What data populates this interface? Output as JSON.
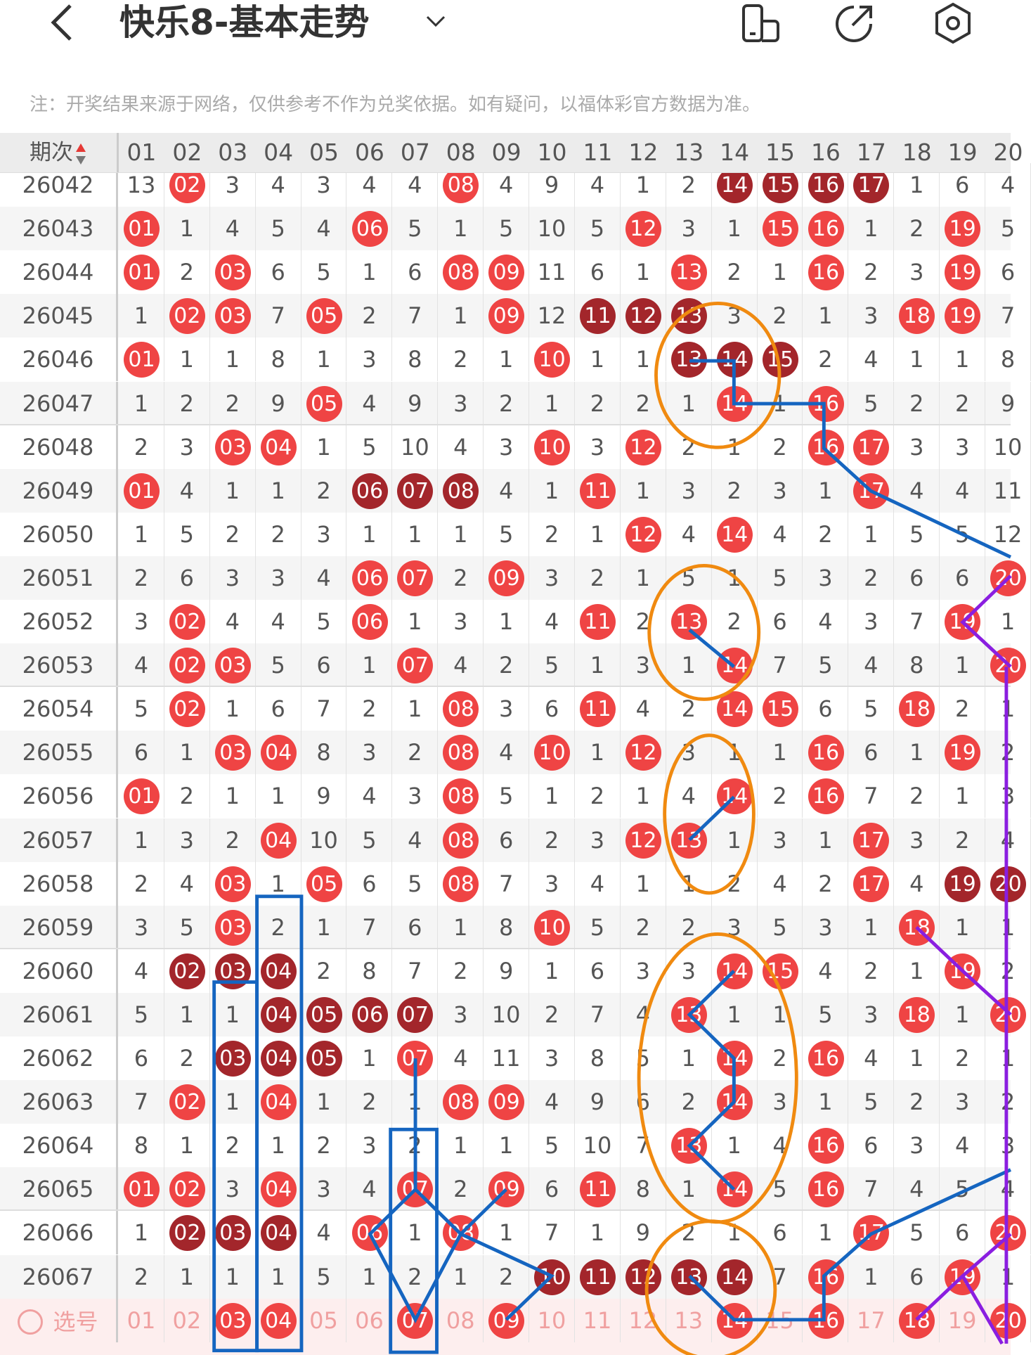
{
  "header": {
    "title": "快乐8-基本走势",
    "back_icon": "chevron-left-icon",
    "dropdown_icon": "chevron-down-icon",
    "actions": [
      {
        "icon": "phone-rotate-icon"
      },
      {
        "icon": "share-icon"
      },
      {
        "icon": "settings-icon"
      }
    ]
  },
  "notice": "注：开奖结果来源于网络，仅供参考不作为兑奖依据。如有疑问，以福体彩官方数据为准。",
  "table": {
    "period_header": "期次",
    "columns": [
      "01",
      "02",
      "03",
      "04",
      "05",
      "06",
      "07",
      "08",
      "09",
      "10",
      "11",
      "12",
      "13",
      "14",
      "15",
      "16",
      "17",
      "18",
      "19",
      "20"
    ],
    "colors": {
      "hit": "#ef4444",
      "consecutive": "#a3262b",
      "overlay_orange": "#f08a10",
      "overlay_blue": "#1565c0",
      "overlay_purple": "#8a1ee0"
    },
    "rows": [
      {
        "period": "26042",
        "values": [
          "13",
          "02",
          "3",
          "4",
          "3",
          "4",
          "4",
          "08",
          "4",
          "9",
          "4",
          "1",
          "2",
          "14",
          "15",
          "16",
          "17",
          "1",
          "6",
          "4"
        ],
        "red": [
          2,
          8
        ],
        "dark": [
          14,
          15,
          16,
          17
        ]
      },
      {
        "period": "26043",
        "values": [
          "01",
          "1",
          "4",
          "5",
          "4",
          "06",
          "5",
          "1",
          "5",
          "10",
          "5",
          "12",
          "3",
          "1",
          "15",
          "16",
          "1",
          "2",
          "19",
          "5"
        ],
        "red": [
          1,
          6,
          12,
          15,
          16,
          19
        ],
        "dark": []
      },
      {
        "period": "26044",
        "values": [
          "01",
          "2",
          "03",
          "6",
          "5",
          "1",
          "6",
          "08",
          "09",
          "11",
          "6",
          "1",
          "13",
          "2",
          "1",
          "16",
          "2",
          "3",
          "19",
          "6"
        ],
        "red": [
          1,
          3,
          8,
          9,
          13,
          16,
          19
        ],
        "dark": []
      },
      {
        "period": "26045",
        "values": [
          "1",
          "02",
          "03",
          "7",
          "05",
          "2",
          "7",
          "1",
          "09",
          "12",
          "11",
          "12",
          "13",
          "3",
          "2",
          "1",
          "3",
          "18",
          "19",
          "7"
        ],
        "red": [
          2,
          3,
          5,
          9,
          18,
          19
        ],
        "dark": [
          11,
          12,
          13
        ]
      },
      {
        "period": "26046",
        "values": [
          "01",
          "1",
          "1",
          "8",
          "1",
          "3",
          "8",
          "2",
          "1",
          "10",
          "1",
          "1",
          "13",
          "14",
          "15",
          "2",
          "4",
          "1",
          "1",
          "8"
        ],
        "red": [
          1,
          10
        ],
        "dark": [
          13,
          14,
          15
        ]
      },
      {
        "period": "26047",
        "values": [
          "1",
          "2",
          "2",
          "9",
          "05",
          "4",
          "9",
          "3",
          "2",
          "1",
          "2",
          "2",
          "1",
          "14",
          "1",
          "16",
          "5",
          "2",
          "2",
          "9"
        ],
        "red": [
          5,
          14,
          16
        ],
        "dark": []
      },
      {
        "period": "26048",
        "values": [
          "2",
          "3",
          "03",
          "04",
          "1",
          "5",
          "10",
          "4",
          "3",
          "10",
          "3",
          "12",
          "2",
          "1",
          "2",
          "16",
          "17",
          "3",
          "3",
          "10"
        ],
        "red": [
          3,
          4,
          10,
          12,
          16,
          17
        ],
        "dark": []
      },
      {
        "period": "26049",
        "values": [
          "01",
          "4",
          "1",
          "1",
          "2",
          "06",
          "07",
          "08",
          "4",
          "1",
          "11",
          "1",
          "3",
          "2",
          "3",
          "1",
          "17",
          "4",
          "4",
          "11"
        ],
        "red": [
          1,
          11,
          17
        ],
        "dark": [
          6,
          7,
          8
        ]
      },
      {
        "period": "26050",
        "values": [
          "1",
          "5",
          "2",
          "2",
          "3",
          "1",
          "1",
          "1",
          "5",
          "2",
          "1",
          "12",
          "4",
          "14",
          "4",
          "2",
          "1",
          "5",
          "5",
          "12"
        ],
        "red": [
          12,
          14
        ],
        "dark": []
      },
      {
        "period": "26051",
        "values": [
          "2",
          "6",
          "3",
          "3",
          "4",
          "06",
          "07",
          "2",
          "09",
          "3",
          "2",
          "1",
          "5",
          "1",
          "5",
          "3",
          "2",
          "6",
          "6",
          "20"
        ],
        "red": [
          6,
          7,
          9,
          20
        ],
        "dark": []
      },
      {
        "period": "26052",
        "values": [
          "3",
          "02",
          "4",
          "4",
          "5",
          "06",
          "1",
          "3",
          "1",
          "4",
          "11",
          "2",
          "13",
          "2",
          "6",
          "4",
          "3",
          "7",
          "19",
          "1"
        ],
        "red": [
          2,
          6,
          11,
          13,
          19
        ],
        "dark": []
      },
      {
        "period": "26053",
        "values": [
          "4",
          "02",
          "03",
          "5",
          "6",
          "1",
          "07",
          "4",
          "2",
          "5",
          "1",
          "3",
          "1",
          "14",
          "7",
          "5",
          "4",
          "8",
          "1",
          "20"
        ],
        "red": [
          2,
          3,
          7,
          14,
          20
        ],
        "dark": []
      },
      {
        "period": "26054",
        "values": [
          "5",
          "02",
          "1",
          "6",
          "7",
          "2",
          "1",
          "08",
          "3",
          "6",
          "11",
          "4",
          "2",
          "14",
          "15",
          "6",
          "5",
          "18",
          "2",
          "1"
        ],
        "red": [
          2,
          8,
          11,
          14,
          15,
          18
        ],
        "dark": []
      },
      {
        "period": "26055",
        "values": [
          "6",
          "1",
          "03",
          "04",
          "8",
          "3",
          "2",
          "08",
          "4",
          "10",
          "1",
          "12",
          "3",
          "1",
          "1",
          "16",
          "6",
          "1",
          "19",
          "2"
        ],
        "red": [
          3,
          4,
          8,
          10,
          12,
          16,
          19
        ],
        "dark": []
      },
      {
        "period": "26056",
        "values": [
          "01",
          "2",
          "1",
          "1",
          "9",
          "4",
          "3",
          "08",
          "5",
          "1",
          "2",
          "1",
          "4",
          "14",
          "2",
          "16",
          "7",
          "2",
          "1",
          "3"
        ],
        "red": [
          1,
          8,
          14,
          16
        ],
        "dark": []
      },
      {
        "period": "26057",
        "values": [
          "1",
          "3",
          "2",
          "04",
          "10",
          "5",
          "4",
          "08",
          "6",
          "2",
          "3",
          "12",
          "13",
          "1",
          "3",
          "1",
          "17",
          "3",
          "2",
          "4"
        ],
        "red": [
          4,
          8,
          12,
          13,
          17
        ],
        "dark": []
      },
      {
        "period": "26058",
        "values": [
          "2",
          "4",
          "03",
          "1",
          "05",
          "6",
          "5",
          "08",
          "7",
          "3",
          "4",
          "1",
          "1",
          "2",
          "4",
          "2",
          "17",
          "4",
          "19",
          "20"
        ],
        "red": [
          3,
          5,
          8,
          17
        ],
        "dark": [
          19,
          20
        ]
      },
      {
        "period": "26059",
        "values": [
          "3",
          "5",
          "03",
          "2",
          "1",
          "7",
          "6",
          "1",
          "8",
          "10",
          "5",
          "2",
          "2",
          "3",
          "5",
          "3",
          "1",
          "18",
          "1",
          "1"
        ],
        "red": [
          3,
          10,
          18
        ],
        "dark": []
      },
      {
        "period": "26060",
        "values": [
          "4",
          "02",
          "03",
          "04",
          "2",
          "8",
          "7",
          "2",
          "9",
          "1",
          "6",
          "3",
          "3",
          "14",
          "15",
          "4",
          "2",
          "1",
          "19",
          "2"
        ],
        "red": [
          14,
          15,
          19
        ],
        "dark": [
          2,
          3,
          4
        ]
      },
      {
        "period": "26061",
        "values": [
          "5",
          "1",
          "1",
          "04",
          "05",
          "06",
          "07",
          "3",
          "10",
          "2",
          "7",
          "4",
          "13",
          "1",
          "1",
          "5",
          "3",
          "18",
          "1",
          "20"
        ],
        "red": [
          13,
          18,
          20
        ],
        "dark": [
          4,
          5,
          6,
          7
        ]
      },
      {
        "period": "26062",
        "values": [
          "6",
          "2",
          "03",
          "04",
          "05",
          "1",
          "07",
          "4",
          "11",
          "3",
          "8",
          "5",
          "1",
          "14",
          "2",
          "16",
          "4",
          "1",
          "2",
          "1"
        ],
        "red": [
          7,
          14,
          16
        ],
        "dark": [
          3,
          4,
          5
        ]
      },
      {
        "period": "26063",
        "values": [
          "7",
          "02",
          "1",
          "04",
          "1",
          "2",
          "1",
          "08",
          "09",
          "4",
          "9",
          "6",
          "2",
          "14",
          "3",
          "1",
          "5",
          "2",
          "3",
          "2"
        ],
        "red": [
          2,
          4,
          8,
          9,
          14
        ],
        "dark": []
      },
      {
        "period": "26064",
        "values": [
          "8",
          "1",
          "2",
          "1",
          "2",
          "3",
          "2",
          "1",
          "1",
          "5",
          "10",
          "7",
          "13",
          "1",
          "4",
          "16",
          "6",
          "3",
          "4",
          "3"
        ],
        "red": [
          13,
          16
        ],
        "dark": []
      },
      {
        "period": "26065",
        "values": [
          "01",
          "02",
          "3",
          "04",
          "3",
          "4",
          "07",
          "2",
          "09",
          "6",
          "11",
          "8",
          "1",
          "14",
          "5",
          "16",
          "7",
          "4",
          "5",
          "4"
        ],
        "red": [
          1,
          2,
          4,
          7,
          9,
          11,
          14,
          16
        ],
        "dark": []
      },
      {
        "period": "26066",
        "values": [
          "1",
          "02",
          "03",
          "04",
          "4",
          "06",
          "1",
          "08",
          "1",
          "7",
          "1",
          "9",
          "2",
          "1",
          "6",
          "1",
          "17",
          "5",
          "6",
          "20"
        ],
        "red": [
          6,
          8,
          17,
          20
        ],
        "dark": [
          2,
          3,
          4
        ]
      },
      {
        "period": "26067",
        "values": [
          "2",
          "1",
          "1",
          "1",
          "5",
          "1",
          "2",
          "1",
          "2",
          "10",
          "11",
          "12",
          "13",
          "14",
          "7",
          "16",
          "1",
          "6",
          "19",
          "1"
        ],
        "red": [
          16,
          19
        ],
        "dark": [
          10,
          11,
          12,
          13,
          14
        ]
      }
    ],
    "selection": {
      "label": "选号",
      "icon": "radio-circle-icon",
      "selected": [
        3,
        4,
        7,
        9,
        14,
        16,
        18,
        20
      ]
    }
  }
}
